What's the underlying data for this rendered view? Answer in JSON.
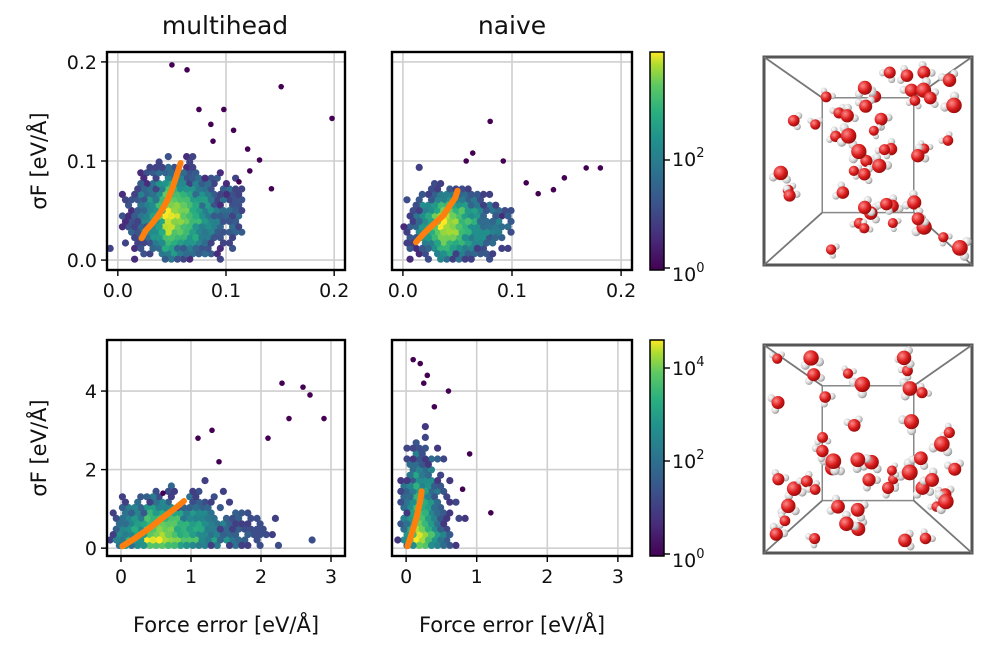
{
  "columns": [
    "multihead",
    "naive"
  ],
  "colorbar_top": {
    "ticks": [
      "10^0",
      "10^2"
    ]
  },
  "colorbar_bottom": {
    "ticks": [
      "10^0",
      "10^2",
      "10^4"
    ]
  },
  "chart_data": [
    {
      "type": "hexbin-scatter",
      "title": "multihead",
      "row": "top",
      "ylabel": "σF [eV/Å]",
      "xlabel": "",
      "xlim": [
        -0.01,
        0.21
      ],
      "ylim": [
        -0.01,
        0.21
      ],
      "xticks": [
        0.0,
        0.1,
        0.2
      ],
      "yticks": [
        0.0,
        0.1,
        0.2
      ],
      "xtick_labels": [
        "0.0",
        "0.1",
        "0.2"
      ],
      "ytick_labels": [
        "0.0",
        "0.1",
        "0.2"
      ],
      "grid": true,
      "cloud_core": [
        0.04,
        0.045
      ],
      "cloud_spread": [
        0.018,
        0.018
      ],
      "cloud_xmax": 0.115,
      "outliers": [
        [
          0.198,
          0.143
        ],
        [
          0.151,
          0.175
        ],
        [
          0.098,
          0.152
        ],
        [
          0.131,
          0.101
        ],
        [
          0.075,
          0.152
        ],
        [
          0.064,
          0.192
        ],
        [
          0.05,
          0.197
        ],
        [
          0.107,
          0.131
        ],
        [
          0.086,
          0.137
        ],
        [
          0.12,
          0.112
        ],
        [
          0.142,
          0.072
        ],
        [
          0.112,
          0.079
        ],
        [
          0.122,
          0.09
        ],
        [
          0.088,
          0.12
        ]
      ],
      "trend": {
        "x": [
          0.022,
          0.026,
          0.031,
          0.036,
          0.041,
          0.046,
          0.05,
          0.053,
          0.056,
          0.058
        ],
        "y": [
          0.022,
          0.03,
          0.036,
          0.043,
          0.051,
          0.061,
          0.071,
          0.081,
          0.091,
          0.098
        ]
      }
    },
    {
      "type": "hexbin-scatter",
      "title": "naive",
      "row": "top",
      "ylabel": "",
      "xlabel": "",
      "xlim": [
        -0.01,
        0.21
      ],
      "ylim": [
        -0.01,
        0.21
      ],
      "xticks": [
        0.0,
        0.1,
        0.2
      ],
      "yticks": [
        0.0,
        0.1,
        0.2
      ],
      "xtick_labels": [
        "0.0",
        "0.1",
        "0.2"
      ],
      "ytick_labels": [],
      "grid": true,
      "cloud_core": [
        0.03,
        0.035
      ],
      "cloud_spread": [
        0.016,
        0.014
      ],
      "cloud_xmax": 0.1,
      "outliers": [
        [
          0.181,
          0.093
        ],
        [
          0.168,
          0.093
        ],
        [
          0.148,
          0.083
        ],
        [
          0.138,
          0.071
        ],
        [
          0.124,
          0.067
        ],
        [
          0.08,
          0.14
        ],
        [
          0.092,
          0.1
        ],
        [
          0.064,
          0.108
        ],
        [
          0.113,
          0.078
        ],
        [
          0.058,
          0.1
        ]
      ],
      "trend": {
        "x": [
          0.012,
          0.016,
          0.022,
          0.03,
          0.037,
          0.043,
          0.048,
          0.05
        ],
        "y": [
          0.018,
          0.023,
          0.03,
          0.038,
          0.045,
          0.055,
          0.063,
          0.07
        ]
      }
    },
    {
      "type": "hexbin-scatter",
      "title": "",
      "row": "bottom",
      "ylabel": "σF [eV/Å]",
      "xlabel": "Force error [eV/Å]",
      "xlim": [
        -0.2,
        3.2
      ],
      "ylim": [
        -0.2,
        5.3
      ],
      "xticks": [
        0,
        1,
        2,
        3
      ],
      "yticks": [
        0,
        2,
        4
      ],
      "xtick_labels": [
        "0",
        "1",
        "2",
        "3"
      ],
      "ytick_labels": [
        "0",
        "2",
        "4"
      ],
      "grid": true,
      "cloud_core": [
        0.35,
        0.4
      ],
      "cloud_spread": [
        0.4,
        0.36
      ],
      "cloud_xmax": 3.0,
      "outliers": [
        [
          2.6,
          4.1
        ],
        [
          2.7,
          3.9
        ],
        [
          2.9,
          3.3
        ],
        [
          2.4,
          3.3
        ],
        [
          2.1,
          2.8
        ],
        [
          1.3,
          3.0
        ],
        [
          1.1,
          2.8
        ],
        [
          2.3,
          4.2
        ],
        [
          0.6,
          1.4
        ],
        [
          1.4,
          2.2
        ]
      ],
      "trend": {
        "x": [
          0.02,
          0.2,
          0.4,
          0.6,
          0.8,
          0.9
        ],
        "y": [
          0.05,
          0.25,
          0.5,
          0.78,
          1.05,
          1.2
        ]
      }
    },
    {
      "type": "hexbin-scatter",
      "title": "",
      "row": "bottom",
      "ylabel": "",
      "xlabel": "Force error [eV/Å]",
      "xlim": [
        -0.2,
        3.2
      ],
      "ylim": [
        -0.2,
        5.3
      ],
      "xticks": [
        0,
        1,
        2,
        3
      ],
      "yticks": [
        0,
        2,
        4
      ],
      "xtick_labels": [
        "0",
        "1",
        "2",
        "3"
      ],
      "ytick_labels": [],
      "grid": true,
      "cloud_core": [
        0.1,
        0.5
      ],
      "cloud_spread": [
        0.12,
        0.8
      ],
      "cloud_xmax": 1.3,
      "outliers": [
        [
          0.1,
          4.8
        ],
        [
          0.2,
          4.7
        ],
        [
          0.3,
          4.4
        ],
        [
          0.6,
          4.0
        ],
        [
          0.25,
          4.2
        ],
        [
          0.8,
          1.5
        ],
        [
          1.2,
          0.9
        ],
        [
          0.9,
          2.4
        ],
        [
          0.4,
          3.6
        ]
      ],
      "trend": {
        "x": [
          0.02,
          0.05,
          0.1,
          0.15,
          0.2,
          0.22
        ],
        "y": [
          0.05,
          0.2,
          0.5,
          0.8,
          1.2,
          1.45
        ]
      }
    }
  ]
}
